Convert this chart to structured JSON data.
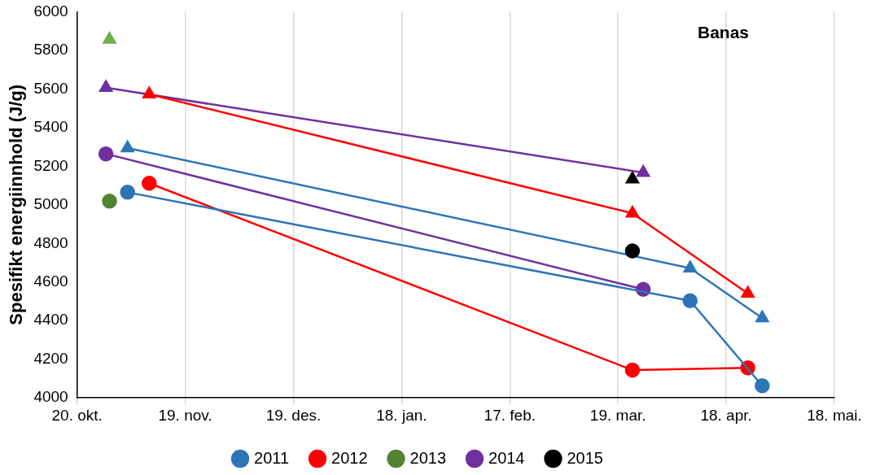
{
  "chart_data": {
    "type": "line",
    "ylabel": "Spesifikt energiinnhold (J/g)",
    "annotations": [
      "Banas"
    ],
    "xlim": [
      "2010-10-20",
      "2011-05-18"
    ],
    "xticks": [
      {
        "value": "2010-10-20",
        "label": "20. okt."
      },
      {
        "value": "2010-11-19",
        "label": "19. nov."
      },
      {
        "value": "2010-12-19",
        "label": "19. des."
      },
      {
        "value": "2011-01-18",
        "label": "18. jan."
      },
      {
        "value": "2011-02-17",
        "label": "17. feb."
      },
      {
        "value": "2011-03-19",
        "label": "19. mar."
      },
      {
        "value": "2011-04-18",
        "label": "18. apr."
      },
      {
        "value": "2011-05-18",
        "label": "18. mai."
      }
    ],
    "ylim": [
      4000,
      6000
    ],
    "yticks": [
      4000,
      4200,
      4400,
      4600,
      4800,
      5000,
      5200,
      5400,
      5600,
      5800,
      6000
    ],
    "grid": "x",
    "legend": "bottom",
    "line_style": "solid",
    "series": [
      {
        "name": "2011",
        "color": "#2e75b6",
        "marker": "circle",
        "x": [
          "2010-11-03",
          "2011-04-08",
          "2011-04-28"
        ],
        "values": [
          5065,
          4503,
          4063
        ]
      },
      {
        "name": "2012",
        "color": "#ff0000",
        "marker": "circle",
        "x": [
          "2010-11-09",
          "2011-03-23",
          "2011-04-24"
        ],
        "values": [
          5112,
          4144,
          4156
        ]
      },
      {
        "name": "2013",
        "color": "#548235",
        "marker": "circle",
        "x": [
          "2010-10-29"
        ],
        "values": [
          5019
        ]
      },
      {
        "name": "2014",
        "color": "#7030a0",
        "marker": "circle",
        "x": [
          "2010-10-28",
          "2011-03-26"
        ],
        "values": [
          5264,
          4562
        ]
      },
      {
        "name": "2015",
        "color": "#000000",
        "marker": "circle",
        "x": [
          "2011-03-23"
        ],
        "values": [
          4761
        ]
      },
      {
        "color": "#2e75b6",
        "marker": "triangle",
        "x": [
          "2010-11-03",
          "2011-04-08",
          "2011-04-28"
        ],
        "values": [
          5294,
          4672,
          4414
        ]
      },
      {
        "color": "#ff0000",
        "marker": "triangle",
        "x": [
          "2010-11-09",
          "2011-03-23",
          "2011-04-24"
        ],
        "values": [
          5573,
          4956,
          4541
        ]
      },
      {
        "color": "#70ad47",
        "marker": "triangle",
        "x": [
          "2010-10-29"
        ],
        "values": [
          5856
        ]
      },
      {
        "color": "#7030a0",
        "marker": "triangle",
        "x": [
          "2010-10-28",
          "2011-03-26"
        ],
        "values": [
          5607,
          5167
        ]
      },
      {
        "color": "#000000",
        "marker": "triangle",
        "x": [
          "2011-03-23"
        ],
        "values": [
          5133
        ]
      }
    ]
  }
}
